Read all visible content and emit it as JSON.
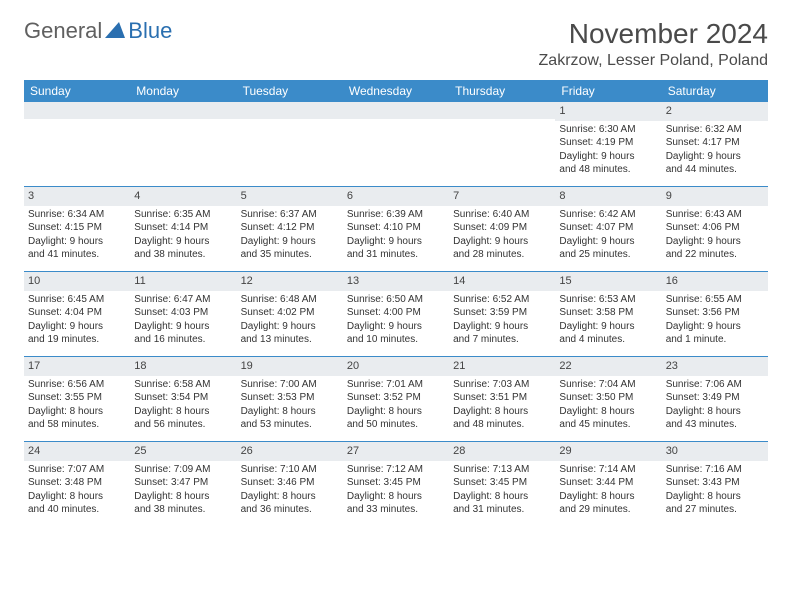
{
  "logo": {
    "text1": "General",
    "text2": "Blue"
  },
  "title": "November 2024",
  "location": "Zakrzow, Lesser Poland, Poland",
  "colors": {
    "header_bg": "#3b8bc9",
    "header_text": "#ffffff",
    "daynum_bg": "#e9ecef",
    "row_border": "#3b8bc9",
    "text": "#333333"
  },
  "dow": [
    "Sunday",
    "Monday",
    "Tuesday",
    "Wednesday",
    "Thursday",
    "Friday",
    "Saturday"
  ],
  "weeks": [
    [
      {
        "n": "",
        "sr": "",
        "ss": "",
        "d1": "",
        "d2": ""
      },
      {
        "n": "",
        "sr": "",
        "ss": "",
        "d1": "",
        "d2": ""
      },
      {
        "n": "",
        "sr": "",
        "ss": "",
        "d1": "",
        "d2": ""
      },
      {
        "n": "",
        "sr": "",
        "ss": "",
        "d1": "",
        "d2": ""
      },
      {
        "n": "",
        "sr": "",
        "ss": "",
        "d1": "",
        "d2": ""
      },
      {
        "n": "1",
        "sr": "Sunrise: 6:30 AM",
        "ss": "Sunset: 4:19 PM",
        "d1": "Daylight: 9 hours",
        "d2": "and 48 minutes."
      },
      {
        "n": "2",
        "sr": "Sunrise: 6:32 AM",
        "ss": "Sunset: 4:17 PM",
        "d1": "Daylight: 9 hours",
        "d2": "and 44 minutes."
      }
    ],
    [
      {
        "n": "3",
        "sr": "Sunrise: 6:34 AM",
        "ss": "Sunset: 4:15 PM",
        "d1": "Daylight: 9 hours",
        "d2": "and 41 minutes."
      },
      {
        "n": "4",
        "sr": "Sunrise: 6:35 AM",
        "ss": "Sunset: 4:14 PM",
        "d1": "Daylight: 9 hours",
        "d2": "and 38 minutes."
      },
      {
        "n": "5",
        "sr": "Sunrise: 6:37 AM",
        "ss": "Sunset: 4:12 PM",
        "d1": "Daylight: 9 hours",
        "d2": "and 35 minutes."
      },
      {
        "n": "6",
        "sr": "Sunrise: 6:39 AM",
        "ss": "Sunset: 4:10 PM",
        "d1": "Daylight: 9 hours",
        "d2": "and 31 minutes."
      },
      {
        "n": "7",
        "sr": "Sunrise: 6:40 AM",
        "ss": "Sunset: 4:09 PM",
        "d1": "Daylight: 9 hours",
        "d2": "and 28 minutes."
      },
      {
        "n": "8",
        "sr": "Sunrise: 6:42 AM",
        "ss": "Sunset: 4:07 PM",
        "d1": "Daylight: 9 hours",
        "d2": "and 25 minutes."
      },
      {
        "n": "9",
        "sr": "Sunrise: 6:43 AM",
        "ss": "Sunset: 4:06 PM",
        "d1": "Daylight: 9 hours",
        "d2": "and 22 minutes."
      }
    ],
    [
      {
        "n": "10",
        "sr": "Sunrise: 6:45 AM",
        "ss": "Sunset: 4:04 PM",
        "d1": "Daylight: 9 hours",
        "d2": "and 19 minutes."
      },
      {
        "n": "11",
        "sr": "Sunrise: 6:47 AM",
        "ss": "Sunset: 4:03 PM",
        "d1": "Daylight: 9 hours",
        "d2": "and 16 minutes."
      },
      {
        "n": "12",
        "sr": "Sunrise: 6:48 AM",
        "ss": "Sunset: 4:02 PM",
        "d1": "Daylight: 9 hours",
        "d2": "and 13 minutes."
      },
      {
        "n": "13",
        "sr": "Sunrise: 6:50 AM",
        "ss": "Sunset: 4:00 PM",
        "d1": "Daylight: 9 hours",
        "d2": "and 10 minutes."
      },
      {
        "n": "14",
        "sr": "Sunrise: 6:52 AM",
        "ss": "Sunset: 3:59 PM",
        "d1": "Daylight: 9 hours",
        "d2": "and 7 minutes."
      },
      {
        "n": "15",
        "sr": "Sunrise: 6:53 AM",
        "ss": "Sunset: 3:58 PM",
        "d1": "Daylight: 9 hours",
        "d2": "and 4 minutes."
      },
      {
        "n": "16",
        "sr": "Sunrise: 6:55 AM",
        "ss": "Sunset: 3:56 PM",
        "d1": "Daylight: 9 hours",
        "d2": "and 1 minute."
      }
    ],
    [
      {
        "n": "17",
        "sr": "Sunrise: 6:56 AM",
        "ss": "Sunset: 3:55 PM",
        "d1": "Daylight: 8 hours",
        "d2": "and 58 minutes."
      },
      {
        "n": "18",
        "sr": "Sunrise: 6:58 AM",
        "ss": "Sunset: 3:54 PM",
        "d1": "Daylight: 8 hours",
        "d2": "and 56 minutes."
      },
      {
        "n": "19",
        "sr": "Sunrise: 7:00 AM",
        "ss": "Sunset: 3:53 PM",
        "d1": "Daylight: 8 hours",
        "d2": "and 53 minutes."
      },
      {
        "n": "20",
        "sr": "Sunrise: 7:01 AM",
        "ss": "Sunset: 3:52 PM",
        "d1": "Daylight: 8 hours",
        "d2": "and 50 minutes."
      },
      {
        "n": "21",
        "sr": "Sunrise: 7:03 AM",
        "ss": "Sunset: 3:51 PM",
        "d1": "Daylight: 8 hours",
        "d2": "and 48 minutes."
      },
      {
        "n": "22",
        "sr": "Sunrise: 7:04 AM",
        "ss": "Sunset: 3:50 PM",
        "d1": "Daylight: 8 hours",
        "d2": "and 45 minutes."
      },
      {
        "n": "23",
        "sr": "Sunrise: 7:06 AM",
        "ss": "Sunset: 3:49 PM",
        "d1": "Daylight: 8 hours",
        "d2": "and 43 minutes."
      }
    ],
    [
      {
        "n": "24",
        "sr": "Sunrise: 7:07 AM",
        "ss": "Sunset: 3:48 PM",
        "d1": "Daylight: 8 hours",
        "d2": "and 40 minutes."
      },
      {
        "n": "25",
        "sr": "Sunrise: 7:09 AM",
        "ss": "Sunset: 3:47 PM",
        "d1": "Daylight: 8 hours",
        "d2": "and 38 minutes."
      },
      {
        "n": "26",
        "sr": "Sunrise: 7:10 AM",
        "ss": "Sunset: 3:46 PM",
        "d1": "Daylight: 8 hours",
        "d2": "and 36 minutes."
      },
      {
        "n": "27",
        "sr": "Sunrise: 7:12 AM",
        "ss": "Sunset: 3:45 PM",
        "d1": "Daylight: 8 hours",
        "d2": "and 33 minutes."
      },
      {
        "n": "28",
        "sr": "Sunrise: 7:13 AM",
        "ss": "Sunset: 3:45 PM",
        "d1": "Daylight: 8 hours",
        "d2": "and 31 minutes."
      },
      {
        "n": "29",
        "sr": "Sunrise: 7:14 AM",
        "ss": "Sunset: 3:44 PM",
        "d1": "Daylight: 8 hours",
        "d2": "and 29 minutes."
      },
      {
        "n": "30",
        "sr": "Sunrise: 7:16 AM",
        "ss": "Sunset: 3:43 PM",
        "d1": "Daylight: 8 hours",
        "d2": "and 27 minutes."
      }
    ]
  ]
}
